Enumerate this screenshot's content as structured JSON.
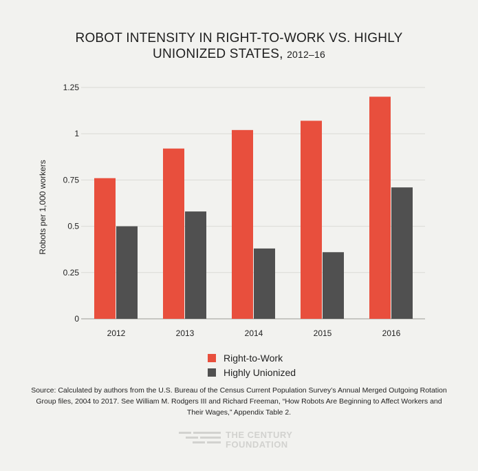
{
  "title_line1": "ROBOT INTENSITY IN RIGHT-TO-WORK VS. HIGHLY",
  "title_line2_main": "UNIONIZED STATES,",
  "title_line2_years": "2012–16",
  "colors": {
    "right_to_work": "#e84f3d",
    "highly_unionized": "#505050",
    "grid": "#dadad6",
    "axis": "#9a9a96",
    "background": "#f2f2ef"
  },
  "chart_data": {
    "type": "bar",
    "categories": [
      "2012",
      "2013",
      "2014",
      "2015",
      "2016"
    ],
    "series": [
      {
        "name": "Right-to-Work",
        "values": [
          0.76,
          0.92,
          1.02,
          1.07,
          1.2
        ]
      },
      {
        "name": "Highly Unionized",
        "values": [
          0.5,
          0.58,
          0.38,
          0.36,
          0.71
        ]
      }
    ],
    "ylabel": "Robots per 1,000 workers",
    "xlabel": "",
    "ylim": [
      0,
      1.25
    ],
    "yticks": [
      0,
      0.25,
      0.5,
      0.75,
      1,
      1.25
    ],
    "ytick_labels": [
      "0",
      "0.25",
      "0.5",
      "0.75",
      "1",
      "1.25"
    ],
    "grid": true,
    "legend_position": "bottom-center"
  },
  "legend": {
    "items": [
      "Right-to-Work",
      "Highly Unionized"
    ]
  },
  "source_text": "Source: Calculated by authors from the U.S. Bureau of the Census Current Population Survey’s Annual Merged Outgoing Rotation Group files, 2004 to 2017. See William M. Rodgers III and Richard Freeman, “How Robots Are Beginning to Affect Workers and Their Wages,” Appendix Table 2.",
  "logo": {
    "line1": "THE CENTURY",
    "line2": "FOUNDATION"
  }
}
